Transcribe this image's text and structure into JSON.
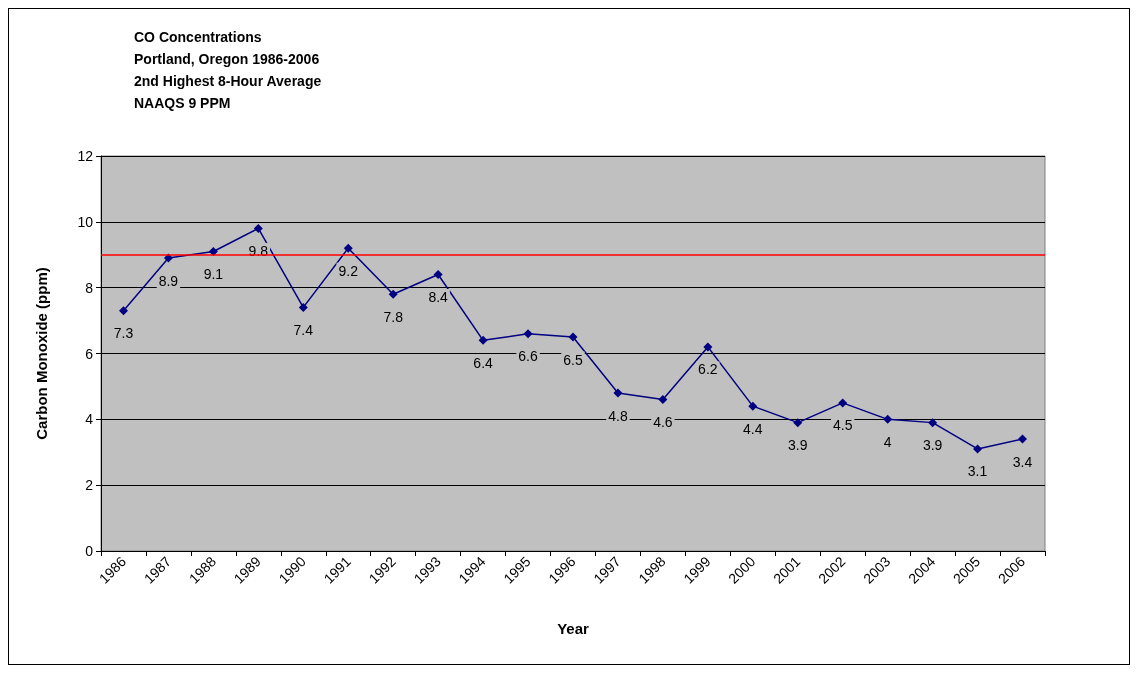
{
  "chart_data": {
    "type": "line",
    "title": "CO Concentrations\nPortland, Oregon 1986-2006\n2nd Highest 8-Hour Average\nNAAQS 9 PPM",
    "xlabel": "Year",
    "ylabel": "Carbon Monoxide (ppm)",
    "categories": [
      "1986",
      "1987",
      "1988",
      "1989",
      "1990",
      "1991",
      "1992",
      "1993",
      "1994",
      "1995",
      "1996",
      "1997",
      "1998",
      "1999",
      "2000",
      "2001",
      "2002",
      "2003",
      "2004",
      "2005",
      "2006"
    ],
    "series": [
      {
        "color": "#000080",
        "values": [
          7.3,
          8.9,
          9.1,
          9.8,
          7.4,
          9.2,
          7.8,
          8.4,
          6.4,
          6.6,
          6.5,
          4.8,
          4.6,
          6.2,
          4.4,
          3.9,
          4.5,
          4,
          3.9,
          3.1,
          3.4
        ]
      }
    ],
    "ylim": [
      0,
      12
    ],
    "yticks": [
      0,
      2,
      4,
      6,
      8,
      10,
      12
    ],
    "grid": "y",
    "marker": "diamond",
    "line_style": "solid",
    "data_labels": true,
    "ref_lines": [
      {
        "axis": "y",
        "value": 9,
        "color": "#ff0000"
      }
    ]
  }
}
